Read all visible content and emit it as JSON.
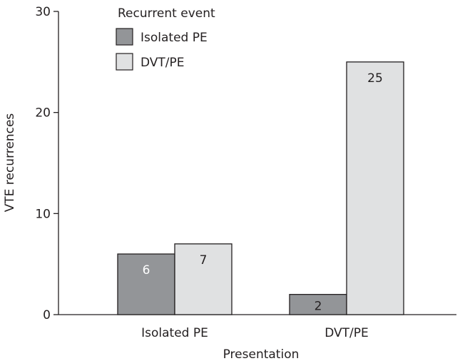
{
  "chart_data": {
    "type": "bar",
    "categories": [
      "Isolated PE",
      "DVT/PE"
    ],
    "series": [
      {
        "name": "Isolated PE",
        "values": [
          6,
          2
        ],
        "color": "#939598",
        "label_color": "#ffffff"
      },
      {
        "name": "DVT/PE",
        "values": [
          7,
          25
        ],
        "color": "#e0e1e2",
        "label_color": "#231f20"
      }
    ],
    "data_labels": true,
    "xlabel": "Presentation",
    "ylabel": "VTE recurrences",
    "ylim": [
      0,
      30
    ],
    "yticks": [
      0,
      10,
      20,
      30
    ],
    "grid": false,
    "legend": {
      "title": "Recurrent event",
      "position": "top-left"
    }
  }
}
